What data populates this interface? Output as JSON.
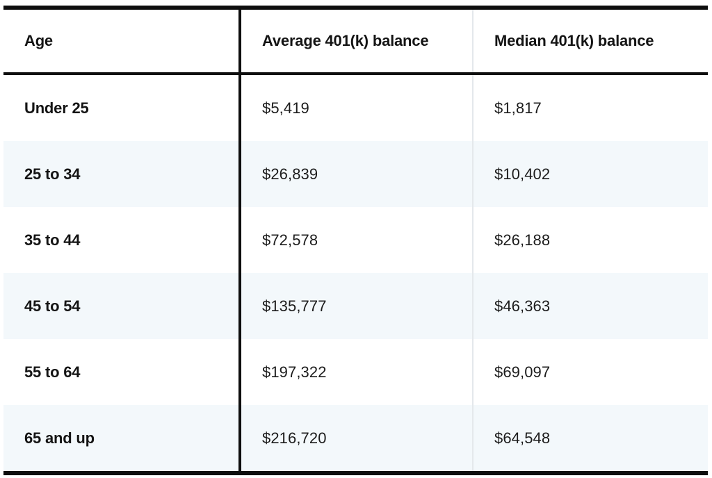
{
  "chart_data": {
    "type": "table",
    "columns": [
      "Age",
      "Average 401(k) balance",
      "Median 401(k) balance"
    ],
    "rows": [
      {
        "age": "Under 25",
        "average": "$5,419",
        "median": "$1,817"
      },
      {
        "age": "25 to 34",
        "average": "$26,839",
        "median": "$10,402"
      },
      {
        "age": "35 to 44",
        "average": "$72,578",
        "median": "$26,188"
      },
      {
        "age": "45 to 54",
        "average": "$135,777",
        "median": "$46,363"
      },
      {
        "age": "55 to 64",
        "average": "$197,322",
        "median": "$69,097"
      },
      {
        "age": "65 and up",
        "average": "$216,720",
        "median": "$64,548"
      }
    ]
  },
  "colors": {
    "border_black": "#0e0e0e",
    "row_alt_bg": "#f3f8fb",
    "divider_light": "#e4e8eb",
    "text": "#1c1c1c"
  }
}
